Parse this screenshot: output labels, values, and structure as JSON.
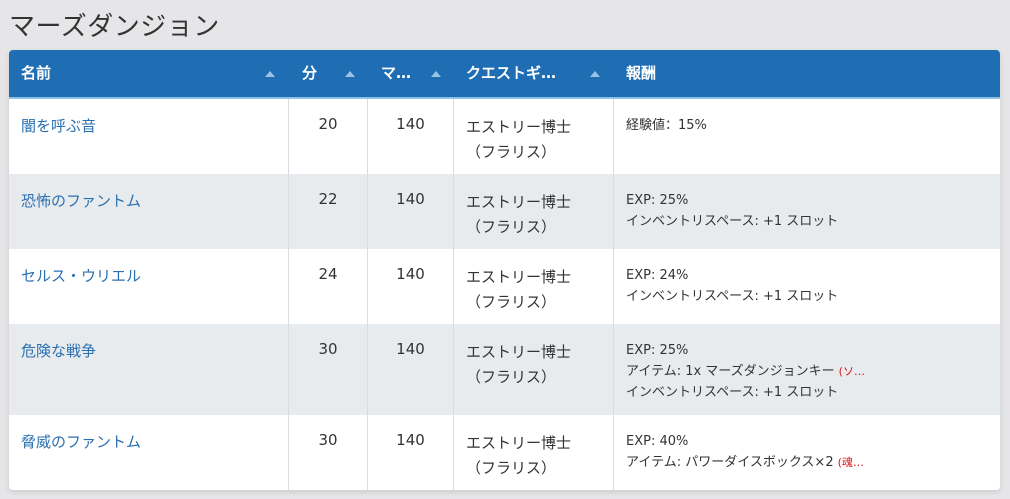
{
  "page": {
    "title": "マーズダンジョン"
  },
  "table": {
    "headers": {
      "name": "名前",
      "minutes": "分",
      "mars": "マ…",
      "quest_giver": "クエストギ…",
      "reward": "報酬"
    },
    "rows": [
      {
        "name": "闇を呼ぶ音",
        "minutes": "20",
        "mars": "140",
        "giver_line1": "エストリー博士",
        "giver_line2": "（フラリス）",
        "rewards": [
          {
            "text": "経験値：15%"
          }
        ]
      },
      {
        "name": "恐怖のファントム",
        "minutes": "22",
        "mars": "140",
        "giver_line1": "エストリー博士",
        "giver_line2": "（フラリス）",
        "rewards": [
          {
            "text": "EXP: 25%"
          },
          {
            "text": "インベントリスペース: +1 スロット"
          }
        ]
      },
      {
        "name": "セルス・ウリエル",
        "minutes": "24",
        "mars": "140",
        "giver_line1": "エストリー博士",
        "giver_line2": "（フラリス）",
        "rewards": [
          {
            "text": "EXP: 24%"
          },
          {
            "text": "インベントリスペース: +1 スロット"
          }
        ]
      },
      {
        "name": "危険な戦争",
        "minutes": "30",
        "mars": "140",
        "giver_line1": "エストリー博士",
        "giver_line2": "（フラリス）",
        "rewards": [
          {
            "text": "EXP: 25%"
          },
          {
            "text": "アイテム: 1x マーズダンジョンキー",
            "note": "(ソ…"
          },
          {
            "text": "インベントリスペース: +1 スロット"
          }
        ]
      },
      {
        "name": "脅威のファントム",
        "minutes": "30",
        "mars": "140",
        "giver_line1": "エストリー博士",
        "giver_line2": "（フラリス）",
        "rewards": [
          {
            "text": "EXP: 40%"
          },
          {
            "text": "アイテム: パワーダイスボックス×2",
            "note": "(魂…"
          }
        ]
      }
    ]
  },
  "colors": {
    "header_bg": "#1f6eb4",
    "link": "#2a6fb0",
    "alt_row": "#e8ebee",
    "note": "#dd1111"
  }
}
